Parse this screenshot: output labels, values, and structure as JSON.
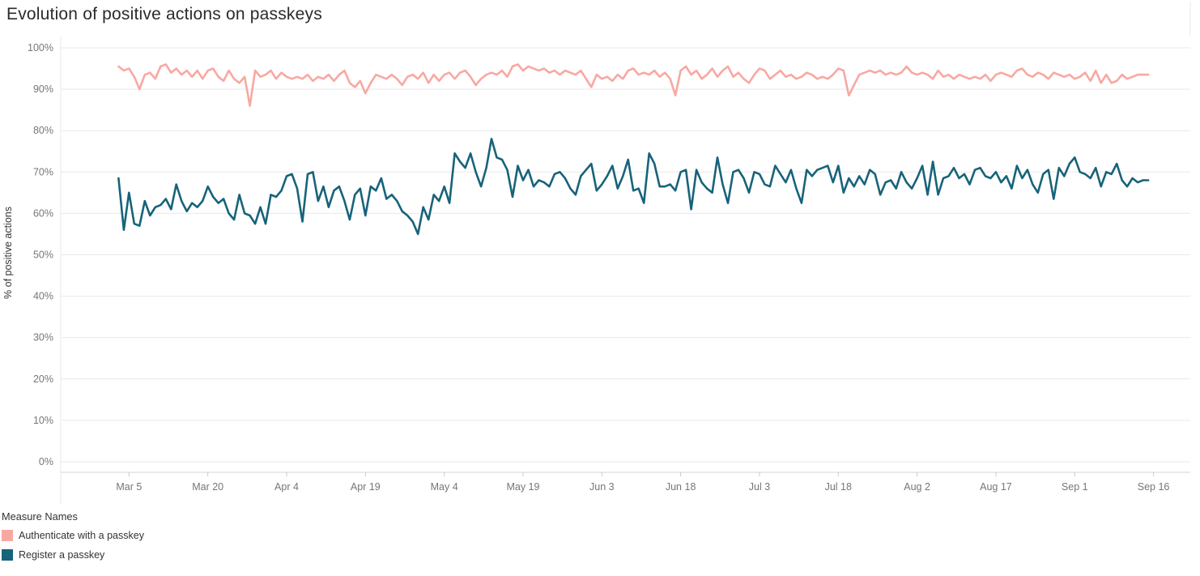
{
  "title": "Evolution of positive actions on passkeys",
  "legend": {
    "title": "Measure Names",
    "items": [
      {
        "id": "authenticate",
        "label": "Authenticate with a passkey",
        "color": "#F8A8A2"
      },
      {
        "id": "register",
        "label": "Register a passkey",
        "color": "#17637A"
      }
    ]
  },
  "chart_data": {
    "type": "line",
    "title": "Evolution of positive actions on passkeys",
    "xlabel": "",
    "ylabel": "% of positive actions",
    "ylim": [
      0,
      100
    ],
    "grid": "horizontal",
    "legend_position": "bottom-left",
    "x_domain": [
      -9,
      206
    ],
    "x_unit": "day index (0 = Mar 1)",
    "y_ticks": [
      {
        "label": "0%",
        "value": 0
      },
      {
        "label": "10%",
        "value": 10
      },
      {
        "label": "20%",
        "value": 20
      },
      {
        "label": "30%",
        "value": 30
      },
      {
        "label": "40%",
        "value": 40
      },
      {
        "label": "50%",
        "value": 50
      },
      {
        "label": "60%",
        "value": 60
      },
      {
        "label": "70%",
        "value": 70
      },
      {
        "label": "80%",
        "value": 80
      },
      {
        "label": "90%",
        "value": 90
      },
      {
        "label": "100%",
        "value": 100
      }
    ],
    "x_ticks": [
      {
        "label": "Mar 5",
        "day": 4
      },
      {
        "label": "Mar 20",
        "day": 19
      },
      {
        "label": "Apr 4",
        "day": 34
      },
      {
        "label": "Apr 19",
        "day": 49
      },
      {
        "label": "May 4",
        "day": 64
      },
      {
        "label": "May 19",
        "day": 79
      },
      {
        "label": "Jun 3",
        "day": 94
      },
      {
        "label": "Jun 18",
        "day": 109
      },
      {
        "label": "Jul 3",
        "day": 124
      },
      {
        "label": "Jul 18",
        "day": 139
      },
      {
        "label": "Aug 2",
        "day": 154
      },
      {
        "label": "Aug 17",
        "day": 169
      },
      {
        "label": "Sep 1",
        "day": 184
      },
      {
        "label": "Sep 16",
        "day": 199
      }
    ],
    "series": [
      {
        "id": "authenticate",
        "name": "Authenticate with a passkey",
        "color": "#F8A8A2",
        "start_day": 2,
        "values": [
          95.5,
          94.5,
          95,
          93,
          90,
          93.5,
          94,
          92.5,
          95.5,
          96,
          94,
          95,
          93.5,
          94.5,
          93,
          94.5,
          92.5,
          94.5,
          95,
          93,
          92,
          94.5,
          92.5,
          91.5,
          93,
          86,
          94.5,
          93,
          93.5,
          94.5,
          92.5,
          94,
          93,
          92.5,
          93,
          92.5,
          93.5,
          92,
          93,
          92.5,
          93.5,
          92,
          93.5,
          94.5,
          91.5,
          90.5,
          92,
          89,
          91.5,
          93.5,
          93,
          92.5,
          93.5,
          92.5,
          91,
          93,
          93.5,
          92.5,
          94,
          91.5,
          93.5,
          92,
          93.5,
          94,
          92.5,
          94,
          94.5,
          93,
          91,
          92.5,
          93.5,
          94,
          93.5,
          94.5,
          93,
          95.5,
          96,
          94.5,
          95.5,
          95,
          94.5,
          95,
          94,
          94.5,
          93.5,
          94.5,
          94,
          93.5,
          94.5,
          92.5,
          90.5,
          93.5,
          92.5,
          93,
          92,
          93.5,
          92.5,
          94.5,
          95,
          93.5,
          94,
          93.5,
          94.5,
          93,
          94,
          92.5,
          88.5,
          94.5,
          95.5,
          93.5,
          94.5,
          92.5,
          93.5,
          95,
          93,
          94.5,
          95.5,
          93,
          94,
          92.5,
          91.5,
          93.5,
          95,
          94.5,
          92.5,
          93.5,
          94.5,
          93,
          93.5,
          92.5,
          93,
          94,
          93.5,
          92.5,
          93,
          92.5,
          93.5,
          95,
          94.5,
          88.5,
          91,
          93.5,
          94,
          94.5,
          94,
          94.5,
          93.5,
          94,
          93.5,
          94,
          95.5,
          94,
          93.5,
          94,
          93.5,
          92.5,
          94.5,
          93,
          93.5,
          92.5,
          93.5,
          93,
          92.5,
          93,
          92.5,
          93.5,
          92,
          93.5,
          94,
          93.5,
          93,
          94.5,
          95,
          93.5,
          93,
          94,
          93.5,
          92.5,
          94,
          93.5,
          93,
          93.5,
          92.5,
          93,
          94,
          92,
          94.5,
          91.5,
          93.5,
          91.5,
          92,
          93.5,
          92.5,
          93,
          93.5,
          93.5,
          93.5
        ]
      },
      {
        "id": "register",
        "name": "Register a passkey",
        "color": "#17637A",
        "start_day": 2,
        "values": [
          68.5,
          56,
          65,
          57.5,
          57,
          63,
          59.5,
          61.5,
          62,
          63.5,
          61,
          67,
          63,
          60.5,
          62.5,
          61.5,
          63,
          66.5,
          64,
          62.5,
          63.5,
          60,
          58.5,
          64.5,
          60,
          59.5,
          57.5,
          61.5,
          57.5,
          64.5,
          64,
          65.5,
          69,
          69.5,
          66,
          58,
          69.5,
          70,
          63,
          66.5,
          61.5,
          65.5,
          66.5,
          63,
          58.5,
          64.5,
          66,
          59.5,
          66.5,
          65.5,
          68.5,
          63.5,
          64.5,
          63,
          60.5,
          59.5,
          58,
          55,
          61.5,
          58.5,
          64.5,
          63,
          66.5,
          62.5,
          74.5,
          72.5,
          71,
          74.5,
          70,
          66.5,
          71,
          78,
          73.5,
          73,
          70.5,
          64,
          71.5,
          68,
          70.5,
          66.5,
          68,
          67.5,
          66.5,
          69.5,
          70,
          68.5,
          66,
          64.5,
          69,
          70.5,
          72,
          65.5,
          67,
          69,
          71.5,
          66,
          69,
          73,
          65.5,
          66,
          62.5,
          74.5,
          72,
          66.5,
          66.5,
          67,
          65.5,
          70,
          70.5,
          61,
          70.5,
          67.5,
          66,
          65,
          73.5,
          67,
          62.5,
          70,
          70.5,
          68.5,
          65,
          70,
          69.5,
          67,
          66.5,
          71.5,
          69.5,
          67.5,
          70.5,
          66,
          62.5,
          70.5,
          69,
          70.5,
          71,
          71.5,
          67.5,
          71.5,
          65,
          68.5,
          66.5,
          69,
          67,
          70.5,
          69.5,
          64.5,
          67.5,
          68,
          66,
          70,
          67.5,
          66,
          68.5,
          71.5,
          64.5,
          72.5,
          64.5,
          68.5,
          69,
          71,
          68.5,
          69.5,
          67,
          70.5,
          71,
          69,
          68.5,
          70,
          67.5,
          69,
          66,
          71.5,
          68.5,
          70.5,
          67,
          65,
          69.5,
          70.5,
          63.5,
          71,
          69,
          72,
          73.5,
          70,
          69.5,
          68.5,
          71,
          66.5,
          70,
          69.5,
          72,
          68,
          66.5,
          68.5,
          67.5,
          68,
          68
        ]
      }
    ]
  }
}
